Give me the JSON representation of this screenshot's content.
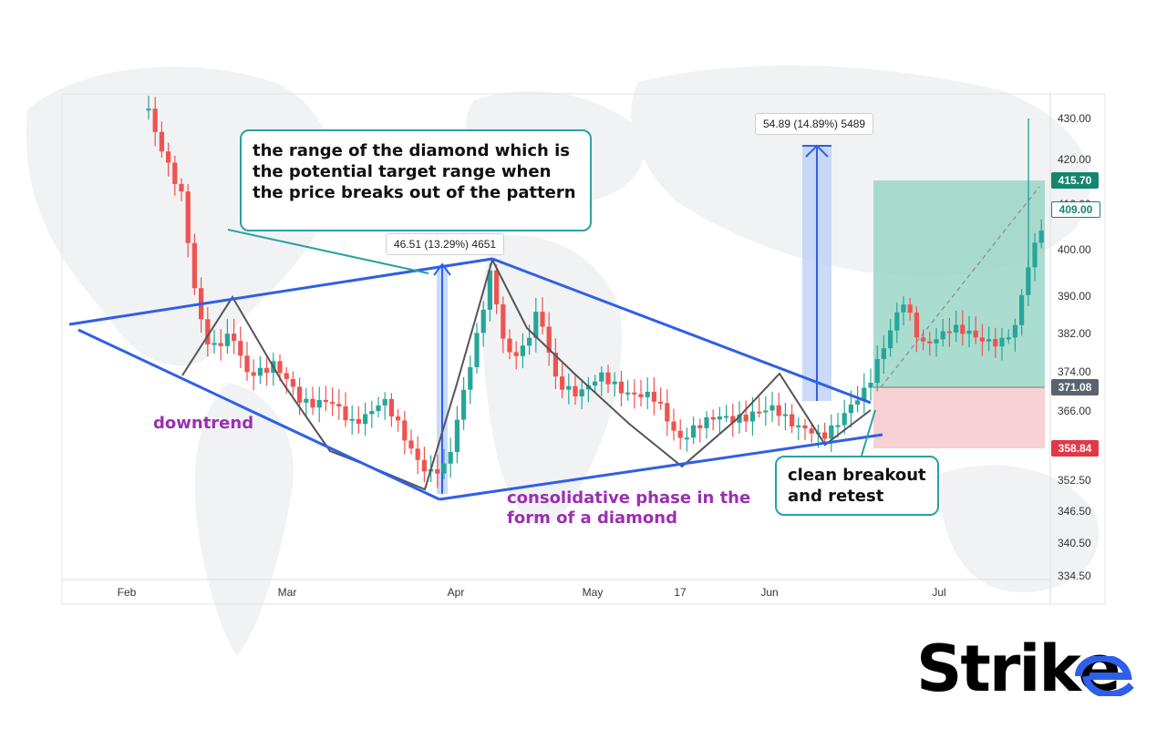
{
  "chart_data": {
    "type": "candlestick",
    "x_tick_labels": [
      "Feb",
      "Mar",
      "Apr",
      "May",
      "17",
      "Jun",
      "Jul"
    ],
    "y_tick_labels": [
      "430.00",
      "420.00",
      "410.00",
      "400.00",
      "390.00",
      "382.00",
      "374.00",
      "366.00",
      "352.50",
      "346.50",
      "340.50",
      "334.50"
    ],
    "ylim": [
      333,
      436
    ],
    "annotations": {
      "range_callout": "the range of the diamond which is the potential target range when the price breaks out of the pattern",
      "breakout_callout": "clean breakout and retest",
      "downtrend": "downtrend",
      "consolidation": "consolidative phase in the form of a diamond",
      "measure_1": "46.51 (13.29%) 4651",
      "measure_2": "54.89 (14.89%) 5489"
    },
    "price_badges": {
      "take_profit": "415.70",
      "current": "409.00",
      "entry": "371.08",
      "stop": "358.84"
    },
    "colors": {
      "up": "#26a69a",
      "down": "#ef5350",
      "pattern_line": "#2f5fe8",
      "zigzag": "#555555",
      "callout_border": "#2aa1a3",
      "label_purple": "#9b2fb1"
    }
  },
  "brand": {
    "name": "Strike"
  }
}
